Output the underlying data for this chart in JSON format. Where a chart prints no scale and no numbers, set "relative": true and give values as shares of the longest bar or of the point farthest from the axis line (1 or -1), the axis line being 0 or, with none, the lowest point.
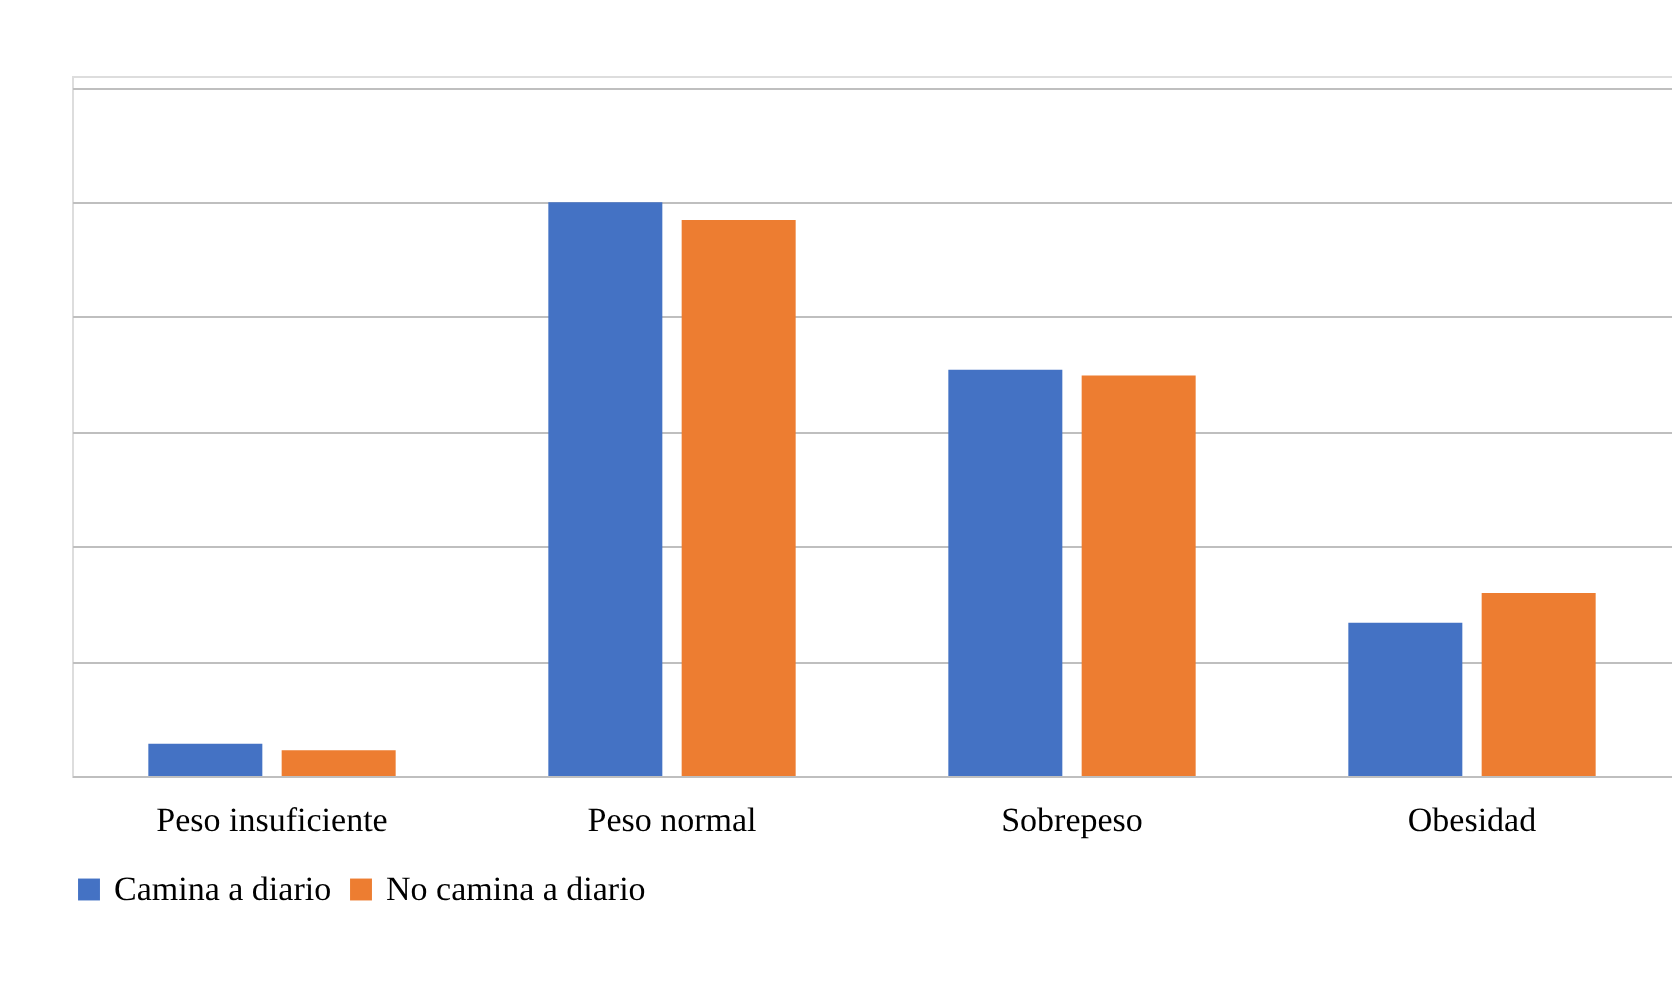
{
  "chart_data": {
    "type": "bar",
    "relative": true,
    "grid": "y",
    "legend": "bottom",
    "categories": [
      "Peso insuficiente",
      "Peso normal",
      "Sobrepeso",
      "Obesidad"
    ],
    "series": [
      {
        "name": "Camina a diario",
        "color": "#4472c4",
        "values": [
          0.056,
          1,
          0.708,
          0.267
        ]
      },
      {
        "name": "No camina a diario",
        "color": "#ed7d31",
        "values": [
          0.045,
          0.969,
          0.698,
          0.319
        ]
      }
    ]
  }
}
